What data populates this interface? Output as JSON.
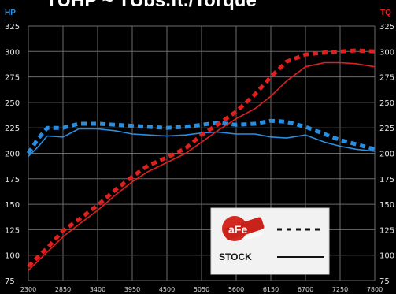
{
  "title_fragment": "TUHP ~ TUbs.ft./Torque",
  "colors": {
    "bg": "#000000",
    "grid": "#6b6b6b",
    "hp": "#2a8ee0",
    "tq": "#e0201e",
    "hp_label": "#2a8ee0",
    "tq_label": "#e0201e",
    "tick": "#e6e6e6"
  },
  "logo": {
    "text": "aFe",
    "subtext": "POWER"
  },
  "chart_data": {
    "type": "line",
    "title": "",
    "xlabel": "",
    "ylabel_left": "HP",
    "ylabel_right": "TQ",
    "x_ticks": [
      "2300",
      "2850",
      "3400",
      "3950",
      "4500",
      "5050",
      "5600",
      "6150",
      "6700",
      "7250",
      "7800"
    ],
    "xlim": [
      2300,
      7800
    ],
    "y_ticks": [
      75,
      100,
      125,
      150,
      175,
      200,
      225,
      250,
      275,
      300,
      325
    ],
    "ylim": [
      75,
      325
    ],
    "legend": {
      "position": "bottom-right",
      "entries": [
        {
          "label": "",
          "style": "dashed"
        },
        {
          "label": "STOCK",
          "style": "solid"
        }
      ]
    },
    "grid": true,
    "series": [
      {
        "name": "HP",
        "variant": "afe",
        "style": "dashed",
        "x": [
          2300,
          2450,
          2600,
          2850,
          3100,
          3400,
          3700,
          3950,
          4200,
          4500,
          4800,
          5050,
          5300,
          5600,
          5900,
          6150,
          6400,
          6700,
          7000,
          7250,
          7500,
          7800
        ],
        "y": [
          200,
          214,
          225,
          225,
          229,
          229,
          228,
          227,
          226,
          225,
          226,
          228,
          230,
          228,
          229,
          232,
          231,
          226,
          219,
          213,
          209,
          204
        ]
      },
      {
        "name": "HP",
        "variant": "stock",
        "style": "solid",
        "x": [
          2300,
          2450,
          2600,
          2850,
          3100,
          3400,
          3700,
          3950,
          4200,
          4500,
          4800,
          5050,
          5300,
          5600,
          5900,
          6150,
          6400,
          6700,
          7000,
          7250,
          7500,
          7800
        ],
        "y": [
          197,
          206,
          217,
          216,
          224,
          224,
          222,
          219,
          218,
          217,
          218,
          220,
          221,
          219,
          219,
          216,
          215,
          218,
          211,
          207,
          204,
          202
        ]
      },
      {
        "name": "TQ",
        "variant": "afe",
        "style": "dashed",
        "x": [
          2300,
          2600,
          2850,
          3100,
          3400,
          3700,
          3950,
          4200,
          4500,
          4800,
          5050,
          5300,
          5600,
          5900,
          6150,
          6400,
          6700,
          7000,
          7250,
          7500,
          7800
        ],
        "y": [
          89,
          107,
          124,
          135,
          149,
          165,
          177,
          188,
          196,
          205,
          218,
          228,
          241,
          258,
          275,
          290,
          297,
          299,
          300,
          301,
          300
        ]
      },
      {
        "name": "TQ",
        "variant": "stock",
        "style": "solid",
        "x": [
          2300,
          2600,
          2850,
          3100,
          3400,
          3700,
          3950,
          4200,
          4500,
          4800,
          5050,
          5300,
          5600,
          5900,
          6150,
          6400,
          6700,
          7000,
          7250,
          7500,
          7800
        ],
        "y": [
          85,
          103,
          118,
          130,
          144,
          160,
          172,
          182,
          191,
          200,
          211,
          222,
          234,
          244,
          256,
          271,
          285,
          289,
          289,
          288,
          285
        ]
      }
    ]
  }
}
